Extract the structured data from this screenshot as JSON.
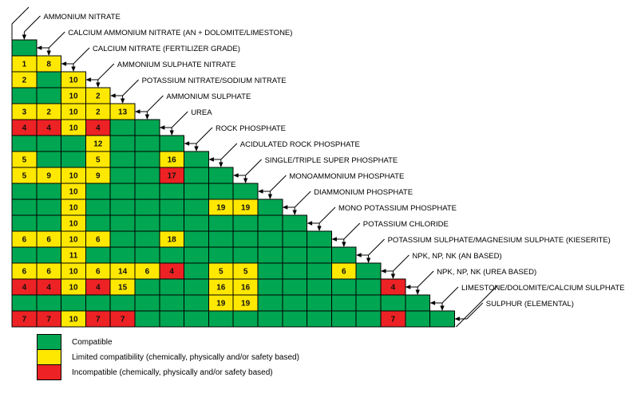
{
  "chart_data": {
    "type": "heatmap",
    "description": "Triangular fertilizer material compatibility matrix; cell codes: G=compatible (green), Y=limited compatibility (yellow), R=incompatible (red); digits after the letter are the footnote number printed inside the cell",
    "materials": [
      "AMMONIUM NITRATE",
      "CALCIUM AMMONIUM NITRATE (AN + DOLOMITE/LIMESTONE)",
      "CALCIUM NITRATE (FERTILIZER GRADE)",
      "AMMONIUM SULPHATE NITRATE",
      "POTASSIUM NITRATE/SODIUM NITRATE",
      "AMMONIUM SULPHATE",
      "UREA",
      "ROCK PHOSPHATE",
      "ACIDULATED ROCK PHOSPHATE",
      "SINGLE/TRIPLE SUPER PHOSPHATE",
      "MONOAMMONIUM PHOSPHATE",
      "DIAMMONIUM PHOSPHATE",
      "MONO POTASSIUM PHOSPHATE",
      "POTASSIUM CHLORIDE",
      "POTASSIUM SULPHATE/MAGNESIUM SULPHATE (KIESERITE)",
      "NPK, NP, NK (AN BASED)",
      "NPK, NP, NK (UREA BASED)",
      "LIMESTONE/DOLOMITE/CALCIUM SULPHATE",
      "SULPHUR (ELEMENTAL)"
    ],
    "rows": [
      {
        "m": 2,
        "cells": [
          "G"
        ]
      },
      {
        "m": 3,
        "cells": [
          "Y1",
          "Y8"
        ]
      },
      {
        "m": 4,
        "cells": [
          "Y2",
          "G",
          "Y10"
        ]
      },
      {
        "m": 5,
        "cells": [
          "G",
          "G",
          "Y10",
          "Y2"
        ]
      },
      {
        "m": 6,
        "cells": [
          "Y3",
          "Y2",
          "Y10",
          "Y2",
          "Y13"
        ]
      },
      {
        "m": 7,
        "cells": [
          "R4",
          "R4",
          "Y10",
          "R4",
          "G",
          "G"
        ]
      },
      {
        "m": 8,
        "cells": [
          "G",
          "G",
          "G",
          "Y12",
          "G",
          "G",
          "G"
        ]
      },
      {
        "m": 9,
        "cells": [
          "Y5",
          "G",
          "G",
          "Y5",
          "G",
          "G",
          "Y16",
          "G"
        ]
      },
      {
        "m": 10,
        "cells": [
          "Y5",
          "Y9",
          "Y10",
          "Y9",
          "G",
          "G",
          "R17",
          "G",
          "G"
        ]
      },
      {
        "m": 11,
        "cells": [
          "G",
          "G",
          "Y10",
          "G",
          "G",
          "G",
          "G",
          "G",
          "G",
          "G"
        ]
      },
      {
        "m": 12,
        "cells": [
          "G",
          "G",
          "Y10",
          "G",
          "G",
          "G",
          "G",
          "G",
          "Y19",
          "Y19",
          "G"
        ]
      },
      {
        "m": 13,
        "cells": [
          "G",
          "G",
          "Y10",
          "G",
          "G",
          "G",
          "G",
          "G",
          "G",
          "G",
          "G",
          "G"
        ]
      },
      {
        "m": 14,
        "cells": [
          "Y6",
          "Y6",
          "Y10",
          "Y6",
          "G",
          "G",
          "Y18",
          "G",
          "G",
          "G",
          "G",
          "G",
          "G"
        ]
      },
      {
        "m": 15,
        "cells": [
          "G",
          "G",
          "Y11",
          "G",
          "G",
          "G",
          "G",
          "G",
          "G",
          "G",
          "G",
          "G",
          "G",
          "G"
        ]
      },
      {
        "m": 16,
        "cells": [
          "Y6",
          "Y6",
          "Y10",
          "Y6",
          "Y14",
          "Y6",
          "R4",
          "G",
          "Y5",
          "Y5",
          "G",
          "G",
          "G",
          "Y6",
          "G"
        ]
      },
      {
        "m": 17,
        "cells": [
          "R4",
          "R4",
          "Y10",
          "R4",
          "Y15",
          "G",
          "G",
          "G",
          "Y16",
          "Y16",
          "G",
          "G",
          "G",
          "G",
          "G",
          "R4"
        ]
      },
      {
        "m": 18,
        "cells": [
          "G",
          "G",
          "G",
          "G",
          "G",
          "G",
          "G",
          "G",
          "Y19",
          "Y19",
          "G",
          "G",
          "G",
          "G",
          "G",
          "G",
          "G"
        ]
      },
      {
        "m": 19,
        "cells": [
          "R7",
          "R7",
          "Y10",
          "R7",
          "R7",
          "G",
          "G",
          "G",
          "G",
          "G",
          "G",
          "G",
          "G",
          "G",
          "G",
          "R7",
          "G",
          "G"
        ]
      }
    ]
  },
  "legend": {
    "items": [
      {
        "code": "G",
        "color": "#00A651",
        "label": "Compatible"
      },
      {
        "code": "Y",
        "color": "#FFE800",
        "label": "Limited compatibility (chemically, physically and/or safety based)"
      },
      {
        "code": "R",
        "color": "#ED2224",
        "label": "Incompatible (chemically, physically and/or safety based)"
      }
    ]
  }
}
